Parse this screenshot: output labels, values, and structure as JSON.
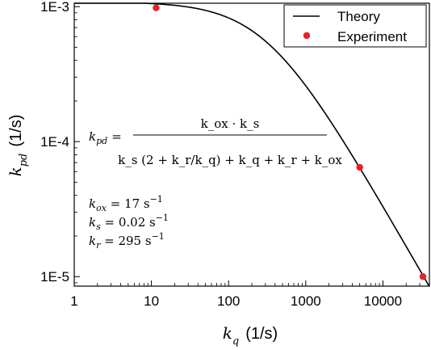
{
  "chart_data": {
    "type": "line",
    "x_scale": "log",
    "y_scale": "log",
    "xlim": [
      1,
      40000
    ],
    "ylim": [
      8.5e-06,
      0.00106
    ],
    "x_ticks": [
      1,
      10,
      100,
      1000,
      10000
    ],
    "x_tick_labels": [
      "1",
      "10",
      "100",
      "1000",
      "10000"
    ],
    "y_ticks": [
      1e-05,
      0.0001,
      0.001
    ],
    "y_tick_labels": [
      "1E-5",
      "1E-4",
      "1E-3"
    ],
    "xlabel": {
      "base": "k",
      "sub": "q",
      "unit": "(1/s)"
    },
    "ylabel": {
      "base": "k",
      "sub": "pd",
      "unit": "(1/s)"
    },
    "grid": false,
    "legend": {
      "position": "top-right"
    },
    "parameters": {
      "k_ox": 17,
      "k_s": 0.02,
      "k_r": 295
    },
    "series": [
      {
        "name": "Theory",
        "style": "line",
        "color": "#000000"
      },
      {
        "name": "Experiment",
        "style": "scatter",
        "color": "#e8202a",
        "points": [
          {
            "x": 11.5,
            "y": 0.00098
          },
          {
            "x": 5000,
            "y": 6.45e-05
          },
          {
            "x": 33000,
            "y": 1e-05
          }
        ]
      }
    ]
  },
  "equation": {
    "lhs_base": "k",
    "lhs_sub": "pd",
    "equals": "=",
    "numerator": "k_ox · k_s",
    "denominator": "k_s (2 + k_r/k_q) + k_q + k_r + k_ox"
  },
  "params_text": [
    {
      "base": "k",
      "sub": "ox",
      "rest": " = 17 s",
      "sup": "−1"
    },
    {
      "base": "k",
      "sub": "s",
      "rest": " = 0.02 s",
      "sup": "−1"
    },
    {
      "base": "k",
      "sub": "r",
      "rest": " = 295 s",
      "sup": "−1"
    }
  ]
}
